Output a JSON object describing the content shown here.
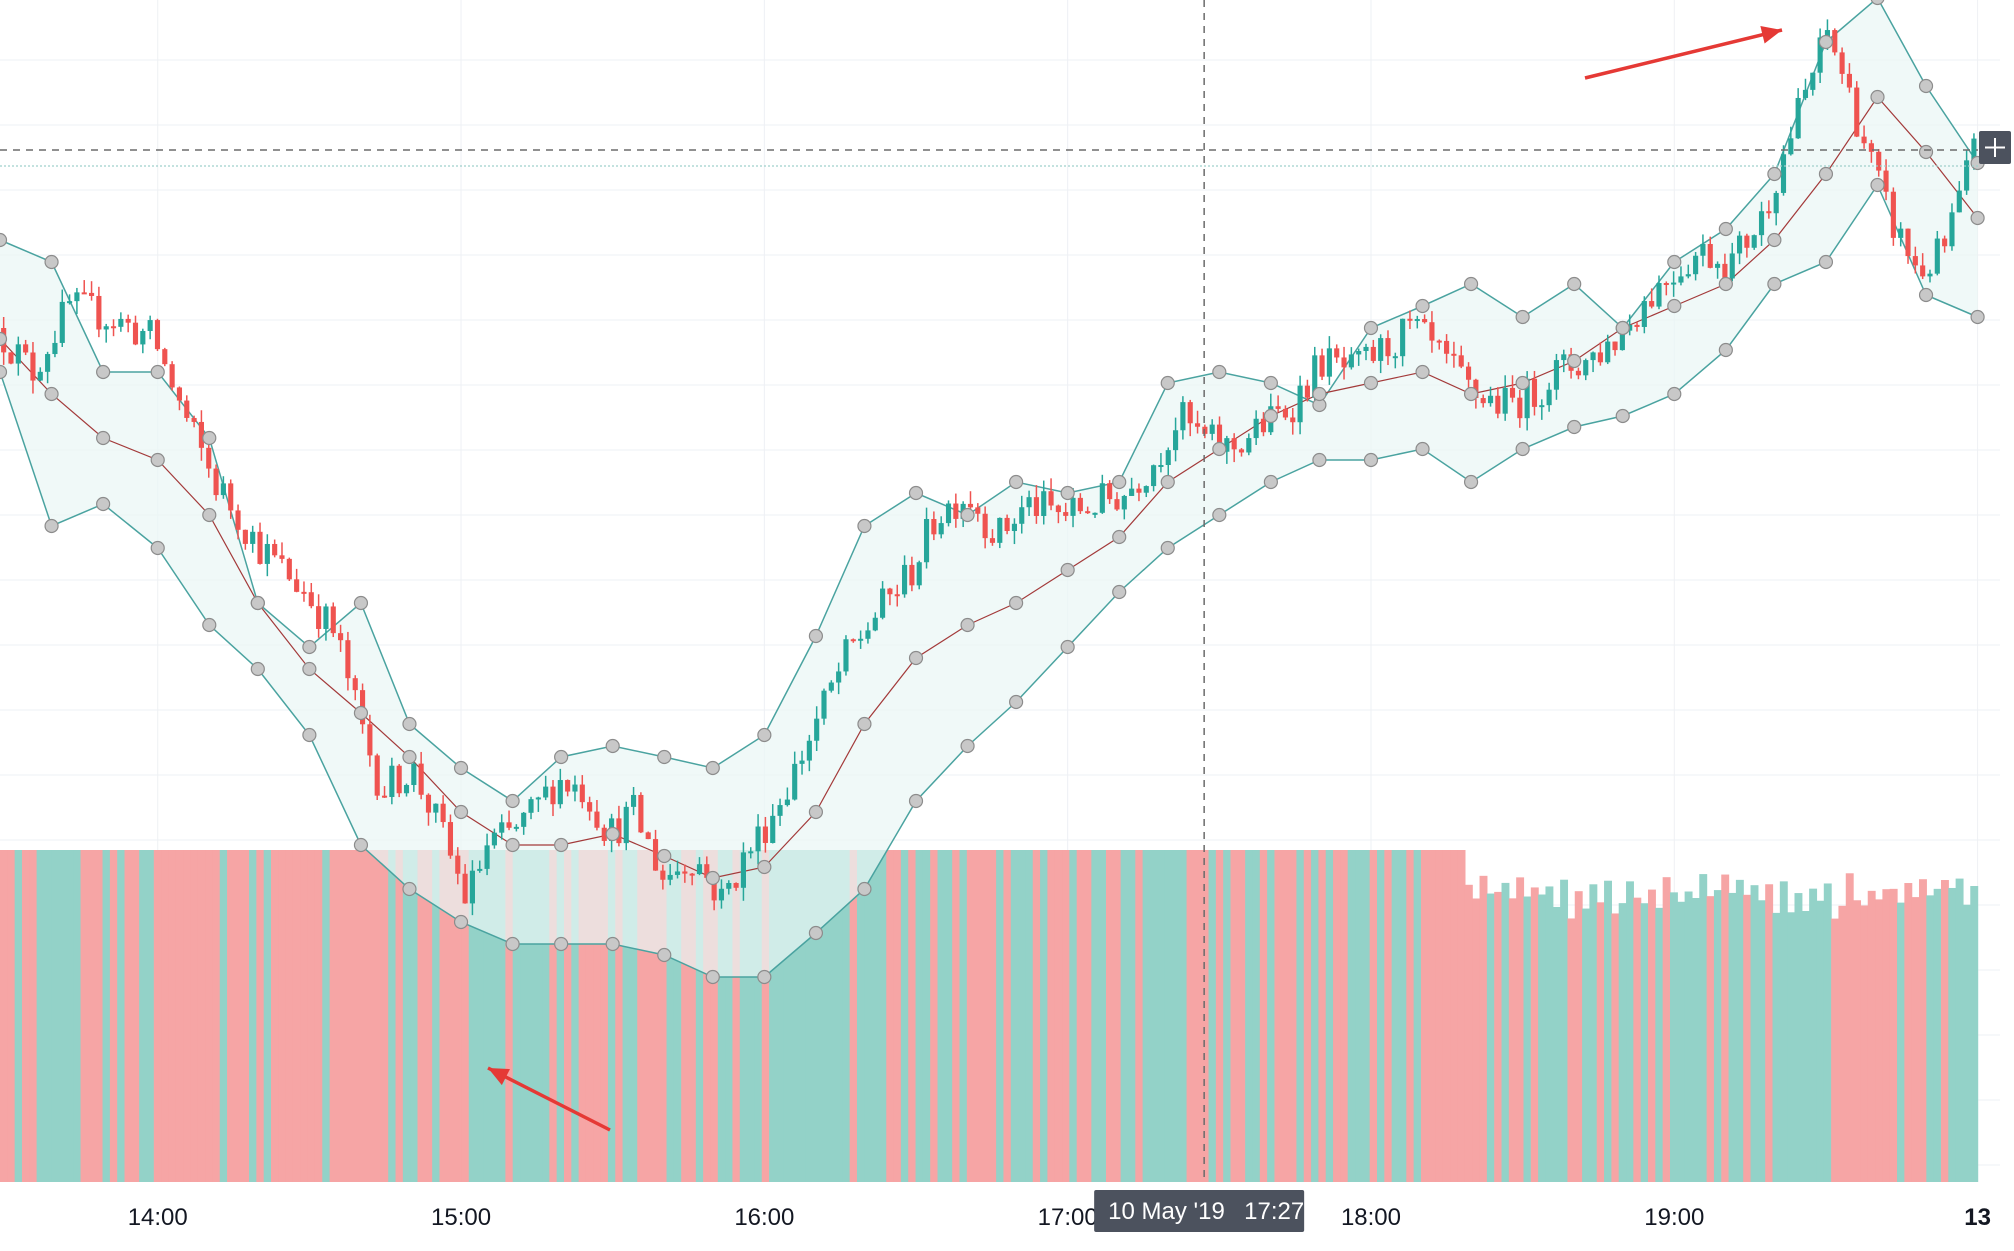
{
  "chart_data": {
    "type": "candlestick",
    "date": "10 May '19",
    "x_axis": {
      "ticks": [
        "14:00",
        "15:00",
        "16:00",
        "17:00",
        "18:00",
        "19:00",
        "13"
      ],
      "tick_hours": [
        14,
        15,
        16,
        17,
        18,
        19,
        20
      ],
      "range_hours": [
        13.48,
        20.12
      ]
    },
    "crosshair": {
      "time_hours": 17.45,
      "label_date": "10 May '19",
      "label_time": "17:27",
      "price_level": 0.89
    },
    "y_range": [
      0,
      1
    ],
    "indicators": [
      "Bollinger Bands",
      "Volume"
    ],
    "bollinger": {
      "time": [
        13.48,
        13.65,
        13.82,
        14.0,
        14.17,
        14.33,
        14.5,
        14.67,
        14.83,
        15.0,
        15.17,
        15.33,
        15.5,
        15.67,
        15.83,
        16.0,
        16.17,
        16.33,
        16.5,
        16.67,
        16.83,
        17.0,
        17.17,
        17.33,
        17.5,
        17.67,
        17.83,
        18.0,
        18.17,
        18.33,
        18.5,
        18.67,
        18.83,
        19.0,
        19.17,
        19.33,
        19.5,
        19.67,
        19.83,
        20.0
      ],
      "upper": [
        0.8,
        0.78,
        0.68,
        0.68,
        0.62,
        0.47,
        0.43,
        0.47,
        0.36,
        0.32,
        0.29,
        0.33,
        0.34,
        0.33,
        0.32,
        0.35,
        0.44,
        0.54,
        0.57,
        0.55,
        0.58,
        0.57,
        0.58,
        0.67,
        0.68,
        0.67,
        0.65,
        0.72,
        0.74,
        0.76,
        0.73,
        0.76,
        0.72,
        0.78,
        0.81,
        0.86,
        0.98,
        1.02,
        0.94,
        0.87
      ],
      "middle": [
        0.71,
        0.66,
        0.62,
        0.6,
        0.55,
        0.47,
        0.41,
        0.37,
        0.33,
        0.28,
        0.25,
        0.25,
        0.26,
        0.24,
        0.22,
        0.23,
        0.28,
        0.36,
        0.42,
        0.45,
        0.47,
        0.5,
        0.53,
        0.58,
        0.61,
        0.64,
        0.66,
        0.67,
        0.68,
        0.66,
        0.67,
        0.69,
        0.72,
        0.74,
        0.76,
        0.8,
        0.86,
        0.93,
        0.88,
        0.82
      ],
      "lower": [
        0.68,
        0.54,
        0.56,
        0.52,
        0.45,
        0.41,
        0.35,
        0.25,
        0.21,
        0.18,
        0.16,
        0.16,
        0.16,
        0.15,
        0.13,
        0.13,
        0.17,
        0.21,
        0.29,
        0.34,
        0.38,
        0.43,
        0.48,
        0.52,
        0.55,
        0.58,
        0.6,
        0.6,
        0.61,
        0.58,
        0.61,
        0.63,
        0.64,
        0.66,
        0.7,
        0.76,
        0.78,
        0.85,
        0.75,
        0.73
      ]
    },
    "price_path": [
      [
        13.48,
        0.72
      ],
      [
        13.6,
        0.68
      ],
      [
        13.72,
        0.74
      ],
      [
        13.85,
        0.73
      ],
      [
        14.0,
        0.71
      ],
      [
        14.1,
        0.64
      ],
      [
        14.2,
        0.58
      ],
      [
        14.35,
        0.52
      ],
      [
        14.5,
        0.48
      ],
      [
        14.6,
        0.44
      ],
      [
        14.68,
        0.36
      ],
      [
        14.75,
        0.3
      ],
      [
        14.85,
        0.32
      ],
      [
        14.95,
        0.26
      ],
      [
        15.03,
        0.2
      ],
      [
        15.1,
        0.25
      ],
      [
        15.18,
        0.26
      ],
      [
        15.25,
        0.28
      ],
      [
        15.33,
        0.31
      ],
      [
        15.42,
        0.3
      ],
      [
        15.5,
        0.26
      ],
      [
        15.58,
        0.28
      ],
      [
        15.68,
        0.22
      ],
      [
        15.78,
        0.24
      ],
      [
        15.87,
        0.2
      ],
      [
        15.95,
        0.24
      ],
      [
        16.02,
        0.27
      ],
      [
        16.1,
        0.31
      ],
      [
        16.18,
        0.36
      ],
      [
        16.28,
        0.42
      ],
      [
        16.38,
        0.46
      ],
      [
        16.5,
        0.5
      ],
      [
        16.58,
        0.55
      ],
      [
        16.68,
        0.57
      ],
      [
        16.78,
        0.53
      ],
      [
        16.88,
        0.56
      ],
      [
        17.0,
        0.55
      ],
      [
        17.1,
        0.56
      ],
      [
        17.2,
        0.57
      ],
      [
        17.3,
        0.6
      ],
      [
        17.38,
        0.64
      ],
      [
        17.45,
        0.62
      ],
      [
        17.55,
        0.61
      ],
      [
        17.65,
        0.63
      ],
      [
        17.75,
        0.65
      ],
      [
        17.85,
        0.69
      ],
      [
        17.95,
        0.68
      ],
      [
        18.05,
        0.7
      ],
      [
        18.15,
        0.72
      ],
      [
        18.25,
        0.69
      ],
      [
        18.35,
        0.66
      ],
      [
        18.45,
        0.65
      ],
      [
        18.55,
        0.66
      ],
      [
        18.62,
        0.68
      ],
      [
        18.72,
        0.69
      ],
      [
        18.82,
        0.71
      ],
      [
        18.9,
        0.74
      ],
      [
        19.0,
        0.77
      ],
      [
        19.1,
        0.79
      ],
      [
        19.2,
        0.78
      ],
      [
        19.3,
        0.82
      ],
      [
        19.4,
        0.9
      ],
      [
        19.48,
        0.96
      ],
      [
        19.52,
        0.99
      ],
      [
        19.58,
        0.94
      ],
      [
        19.65,
        0.88
      ],
      [
        19.72,
        0.82
      ],
      [
        19.82,
        0.77
      ],
      [
        19.9,
        0.79
      ],
      [
        20.0,
        0.88
      ]
    ],
    "volume": {
      "flat_until_hours": 18.3,
      "flat_level": 1.0,
      "tail_levels": [
        0.88,
        0.93,
        0.85,
        0.92,
        0.83,
        0.89,
        0.84,
        0.9,
        0.86,
        0.91,
        0.82,
        0.87,
        0.93,
        0.88,
        0.84,
        0.9,
        0.86,
        0.92,
        0.89,
        0.85,
        0.91,
        0.87,
        0.93,
        0.88,
        0.9,
        0.94,
        0.89,
        0.92,
        0.87,
        0.91
      ]
    },
    "colors": {
      "up": "#26a69a",
      "down": "#ef5350",
      "volume_up": "#93d2c8",
      "volume_down": "#f6a5a5",
      "band_fill": "#eaf6f5",
      "band_line": "#4aa3a0",
      "basis_line": "#a33a3a",
      "marker_fill": "#c8c8c8",
      "marker_stroke": "#8c8c8c",
      "arrow": "#e53935",
      "grid": "#eef0f4",
      "crosshair": "#6b6b6b",
      "label_bg": "#4c525e"
    }
  }
}
